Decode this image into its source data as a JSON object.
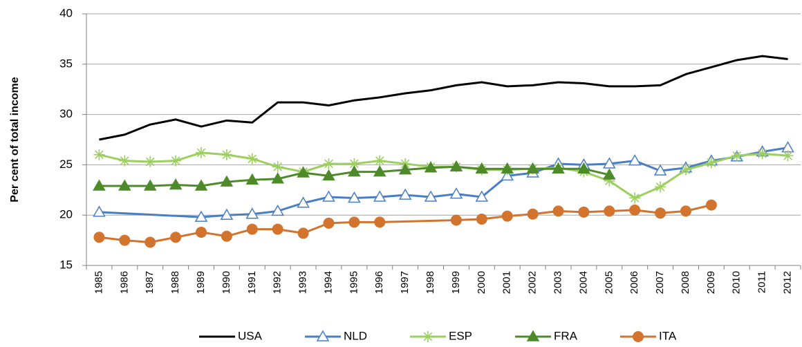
{
  "chart_data": {
    "type": "line",
    "y_label": "Per cent of total income",
    "categories": [
      "1985",
      "1986",
      "1987",
      "1988",
      "1989",
      "1990",
      "1991",
      "1992",
      "1993",
      "1994",
      "1995",
      "1996",
      "1997",
      "1998",
      "1999",
      "2000",
      "2001",
      "2002",
      "2003",
      "2004",
      "2005",
      "2006",
      "2007",
      "2008",
      "2009",
      "2010",
      "2011",
      "2012"
    ],
    "ylim": [
      15,
      40
    ],
    "yticks": [
      15,
      20,
      25,
      30,
      35,
      40
    ],
    "grid": true,
    "legend": "bottom",
    "series": [
      {
        "name": "USA",
        "color": "#000000",
        "marker": "none",
        "values": [
          27.5,
          28.0,
          29.0,
          29.5,
          28.8,
          29.4,
          29.2,
          31.2,
          31.2,
          30.9,
          31.4,
          31.7,
          32.1,
          32.4,
          32.9,
          33.2,
          32.8,
          32.9,
          33.2,
          33.1,
          32.8,
          32.8,
          32.9,
          34.0,
          34.7,
          35.4,
          35.8,
          35.5
        ]
      },
      {
        "name": "NLD",
        "color": "#4a7ec4",
        "marker": "triangle-open",
        "values": [
          20.3,
          null,
          null,
          null,
          19.8,
          20.0,
          20.1,
          20.4,
          21.2,
          21.8,
          21.7,
          21.8,
          22.0,
          21.8,
          22.1,
          21.8,
          23.9,
          24.2,
          25.1,
          25.0,
          25.1,
          25.4,
          24.4,
          24.7,
          25.4,
          25.8,
          26.3,
          26.7
        ]
      },
      {
        "name": "ESP",
        "color": "#9bcf5e",
        "marker": "asterisk",
        "values": [
          26.0,
          25.4,
          25.3,
          25.4,
          26.2,
          26.0,
          25.6,
          24.8,
          24.3,
          25.1,
          25.1,
          25.4,
          25.1,
          24.8,
          24.8,
          24.5,
          24.5,
          24.6,
          24.7,
          24.3,
          23.4,
          21.7,
          22.8,
          24.5,
          25.2,
          25.9,
          26.1,
          25.9
        ]
      },
      {
        "name": "FRA",
        "color": "#4f8a2a",
        "marker": "triangle",
        "values": [
          22.9,
          22.9,
          22.9,
          23.0,
          22.9,
          23.3,
          23.5,
          23.6,
          24.2,
          23.9,
          24.3,
          24.3,
          24.5,
          24.7,
          24.8,
          24.6,
          24.6,
          24.6,
          24.6,
          24.6,
          24.0,
          null,
          null,
          null,
          null,
          null,
          null,
          null
        ]
      },
      {
        "name": "ITA",
        "color": "#d2732e",
        "marker": "circle",
        "values": [
          17.8,
          17.5,
          17.3,
          17.8,
          18.3,
          17.9,
          18.6,
          18.6,
          18.2,
          19.2,
          19.3,
          19.3,
          null,
          null,
          19.5,
          19.6,
          19.9,
          20.1,
          20.4,
          20.3,
          20.4,
          20.5,
          20.2,
          20.4,
          21.0,
          null,
          null,
          null
        ]
      }
    ]
  }
}
